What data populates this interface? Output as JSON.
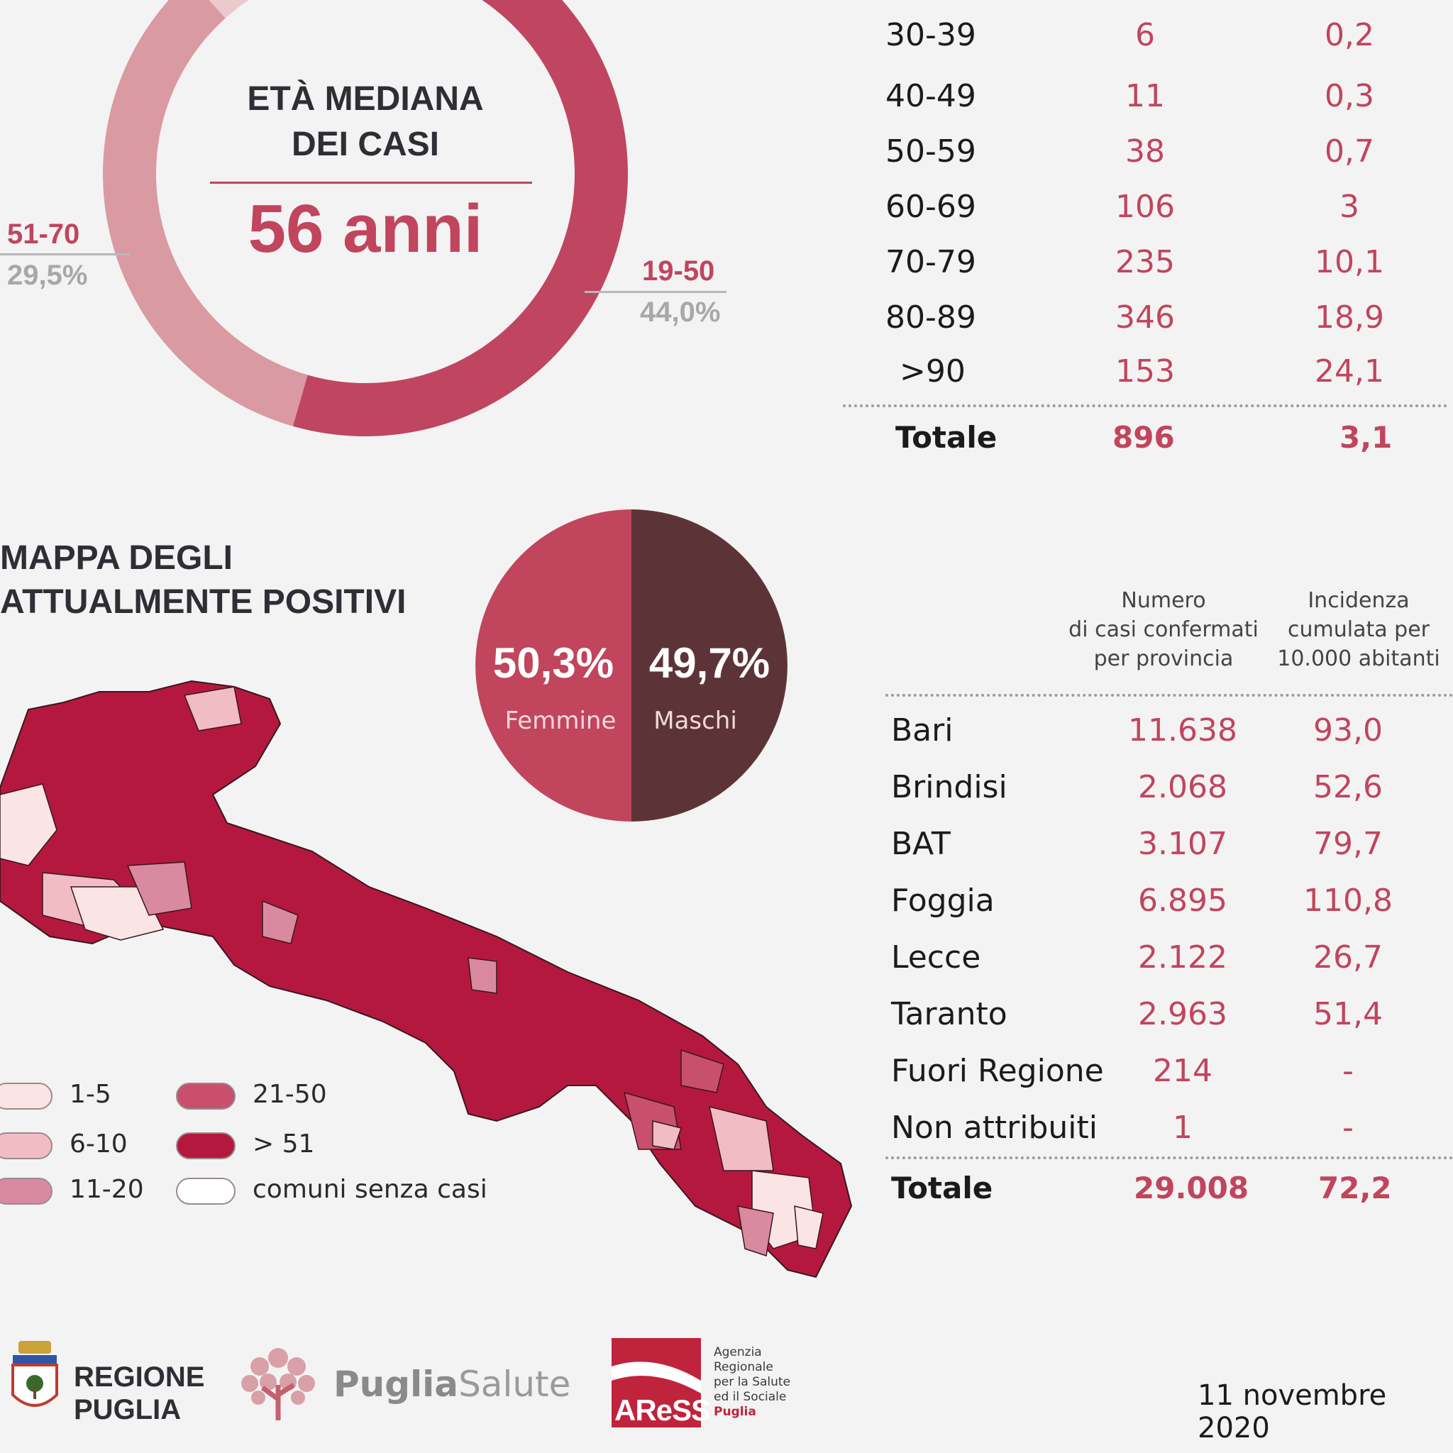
{
  "donut": {
    "title_line1": "ETÀ MEDIANA",
    "title_line2": "DEI CASI",
    "value": "56 anni",
    "label_51_70": "51-70",
    "pct_51_70": "29,5%",
    "label_19_50": "19-50",
    "pct_19_50": "44,0%"
  },
  "age_table": {
    "rows": [
      {
        "age": "30-39",
        "cases": "6",
        "rate": "0,2"
      },
      {
        "age": "40-49",
        "cases": "11",
        "rate": "0,3"
      },
      {
        "age": "50-59",
        "cases": "38",
        "rate": "0,7"
      },
      {
        "age": "60-69",
        "cases": "106",
        "rate": "3"
      },
      {
        "age": "70-79",
        "cases": "235",
        "rate": "10,1"
      },
      {
        "age": "80-89",
        "cases": "346",
        "rate": "18,9"
      },
      {
        "age": ">90",
        "cases": "153",
        "rate": "24,1"
      }
    ],
    "total": {
      "label": "Totale",
      "cases": "896",
      "rate": "3,1"
    }
  },
  "map": {
    "title_line1": "MAPPA DEGLI",
    "title_line2": "ATTUALMENTE POSITIVI",
    "legend": [
      {
        "label": "1-5",
        "color": "#fbe4e4"
      },
      {
        "label": "6-10",
        "color": "#f2bcc4"
      },
      {
        "label": "11-20",
        "color": "#d98aa0"
      },
      {
        "label": "21-50",
        "color": "#c8506c"
      },
      {
        "label": "> 51",
        "color": "#b5183e"
      },
      {
        "label": "comuni senza casi",
        "color": "#ffffff"
      }
    ]
  },
  "gender": {
    "female_pct": "50,3%",
    "female_label": "Femmine",
    "female_color": "#c0455d",
    "male_pct": "49,7%",
    "male_label": "Maschi",
    "male_color": "#5c3438"
  },
  "province_table": {
    "header_cases": [
      "Numero",
      "di casi confermati",
      "per provincia"
    ],
    "header_rate": [
      "Incidenza",
      "cumulata per",
      "10.000 abitanti"
    ],
    "rows": [
      {
        "name": "Bari",
        "cases": "11.638",
        "rate": "93,0"
      },
      {
        "name": "Brindisi",
        "cases": "2.068",
        "rate": "52,6"
      },
      {
        "name": "BAT",
        "cases": "3.107",
        "rate": "79,7"
      },
      {
        "name": "Foggia",
        "cases": "6.895",
        "rate": "110,8"
      },
      {
        "name": "Lecce",
        "cases": "2.122",
        "rate": "26,7"
      },
      {
        "name": "Taranto",
        "cases": "2.963",
        "rate": "51,4"
      },
      {
        "name": "Fuori Regione",
        "cases": "214",
        "rate": "-"
      },
      {
        "name": "Non attribuiti",
        "cases": "1",
        "rate": "-"
      }
    ],
    "total": {
      "label": "Totale",
      "cases": "29.008",
      "rate": "72,2"
    }
  },
  "chart_data": [
    {
      "type": "pie",
      "title": "ETÀ MEDIANA DEI CASI",
      "categories": [
        "51-70",
        "19-50"
      ],
      "values": [
        29.5,
        44.0
      ],
      "colors": [
        "#d99aa2",
        "#bf4560"
      ]
    },
    {
      "type": "table",
      "columns": [
        "age",
        "cases",
        "rate"
      ],
      "rows": [
        [
          "30-39",
          6,
          0.2
        ],
        [
          "40-49",
          11,
          0.3
        ],
        [
          "50-59",
          38,
          0.7
        ],
        [
          "60-69",
          106,
          3
        ],
        [
          "70-79",
          235,
          10.1
        ],
        [
          "80-89",
          346,
          18.9
        ],
        [
          ">90",
          153,
          24.1
        ]
      ]
    },
    {
      "type": "pie",
      "categories": [
        "Femmine",
        "Maschi"
      ],
      "values": [
        50.3,
        49.7
      ],
      "colors": [
        "#c0455d",
        "#5c3438"
      ]
    },
    {
      "type": "table",
      "columns": [
        "Numero di casi confermati per provincia",
        "Incidenza cumulata per 10.000 abitanti"
      ],
      "rows": [
        [
          "Bari",
          11638,
          93.0
        ],
        [
          "Brindisi",
          2068,
          52.6
        ],
        [
          "BAT",
          3107,
          79.7
        ],
        [
          "Foggia",
          6895,
          110.8
        ],
        [
          "Lecce",
          2122,
          26.7
        ],
        [
          "Taranto",
          2963,
          51.4
        ],
        [
          "Fuori Regione",
          214,
          null
        ],
        [
          "Non attribuiti",
          1,
          null
        ]
      ]
    }
  ],
  "footer": {
    "regione_line1": "REGIONE",
    "regione_line2": "PUGLIA",
    "puglia": "Puglia",
    "salute": "Salute",
    "aress": "AReSS",
    "aress_desc": [
      "Agenzia",
      "Regionale",
      "per la Salute",
      "ed il Sociale",
      "Puglia"
    ],
    "date": "11 novembre 2020"
  }
}
